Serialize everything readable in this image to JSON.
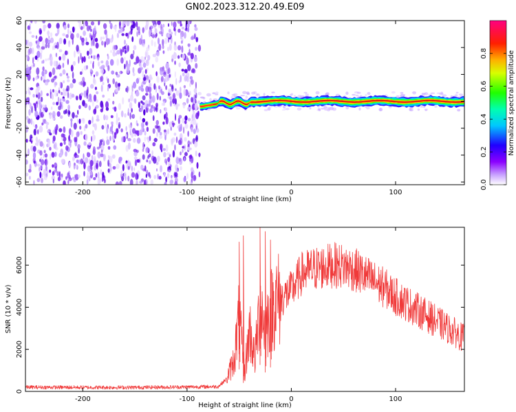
{
  "title": "GN02.2023.312.20.49.E09",
  "colors": {
    "snr_line": "#f03a3a",
    "noise_purple": "#7a1fe8",
    "axis": "#000000"
  },
  "chart_data": [
    {
      "type": "heatmap",
      "panel": "top",
      "xlabel": "Height of straight line (km)",
      "ylabel": "Frequency (Hz)",
      "xlim": [
        -255,
        166
      ],
      "ylim": [
        -62,
        60
      ],
      "xticks": [
        -200,
        -100,
        0,
        100
      ],
      "yticks": [
        -60,
        -40,
        -20,
        0,
        20,
        40,
        60
      ],
      "noise_region_x": [
        -255,
        -88
      ],
      "signal_center_frequency": 0,
      "signal_onset_x": -88,
      "colorbar": {
        "label": "Normalized spectral amplitude",
        "range": [
          0,
          1
        ],
        "ticks": [
          "0.0",
          "0.2",
          "0.4",
          "0.6",
          "0.8"
        ],
        "colormap": [
          "#ffffff",
          "#8b00ff",
          "#0000ff",
          "#00ffff",
          "#00ff00",
          "#ffff00",
          "#ff8000",
          "#ff0000",
          "#ff0080"
        ]
      }
    },
    {
      "type": "line",
      "panel": "bottom",
      "xlabel": "Height of straight line (km)",
      "ylabel": "SNR (10 * v/v)",
      "xlim": [
        -255,
        166
      ],
      "ylim": [
        0,
        7800
      ],
      "xticks": [
        -200,
        -100,
        0,
        100
      ],
      "yticks": [
        0,
        2000,
        4000,
        6000
      ],
      "series": [
        {
          "x": [
            -255,
            -200,
            -150,
            -100,
            -70,
            -62,
            -55,
            -50,
            -45,
            -40,
            -35,
            -30,
            -25,
            -20,
            -15,
            -10,
            0,
            10,
            20,
            30,
            40,
            50,
            60,
            70,
            80,
            90,
            100,
            110,
            120,
            130,
            140,
            150,
            160,
            166
          ],
          "y": [
            200,
            190,
            190,
            210,
            230,
            600,
            1500,
            3500,
            800,
            3000,
            1500,
            4200,
            3000,
            3800,
            4300,
            4400,
            4800,
            5600,
            5800,
            5900,
            6000,
            5950,
            5800,
            5500,
            5200,
            4900,
            4500,
            4200,
            3900,
            3600,
            3300,
            3000,
            2700,
            2500
          ],
          "peak_spikes": [
            {
              "x": -50,
              "y": 7100
            },
            {
              "x": -46,
              "y": 7400
            },
            {
              "x": -30,
              "y": 7800
            },
            {
              "x": -25,
              "y": 7600
            },
            {
              "x": -20,
              "y": 7200
            }
          ]
        }
      ]
    }
  ]
}
